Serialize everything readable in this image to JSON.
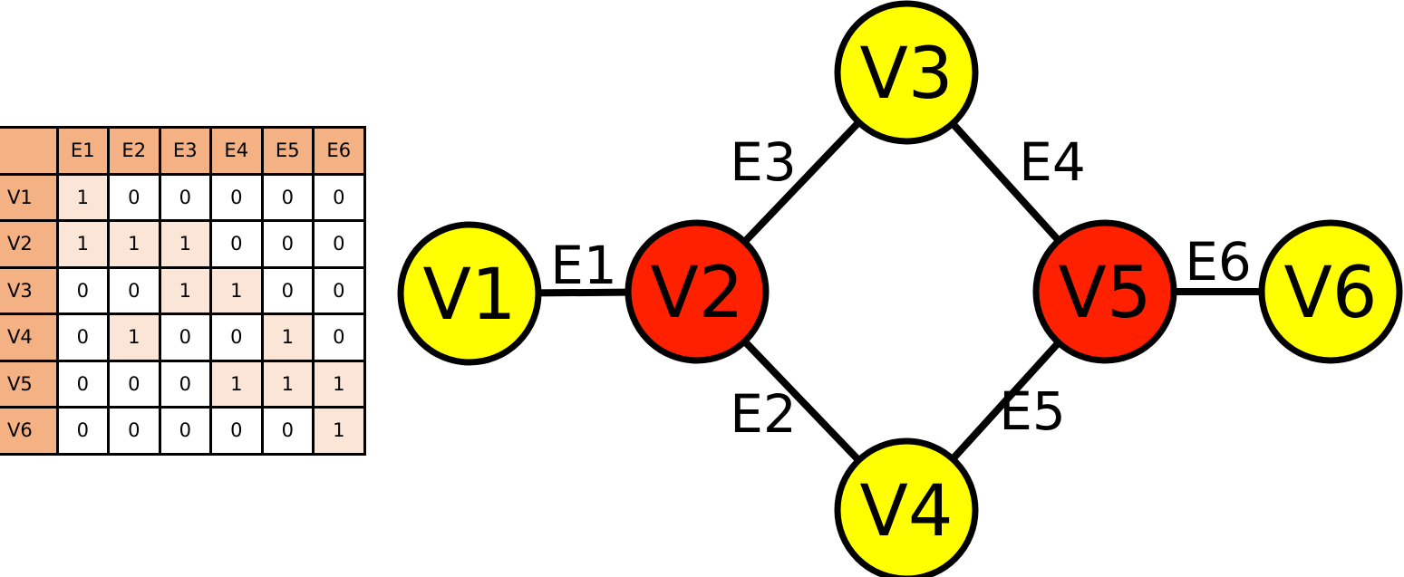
{
  "matrix": {
    "edges": [
      "E1",
      "E2",
      "E3",
      "E4",
      "E5",
      "E6"
    ],
    "rows": [
      {
        "vertex": "V1",
        "values": [
          1,
          0,
          0,
          0,
          0,
          0
        ]
      },
      {
        "vertex": "V2",
        "values": [
          1,
          1,
          1,
          0,
          0,
          0
        ]
      },
      {
        "vertex": "V3",
        "values": [
          0,
          0,
          1,
          1,
          0,
          0
        ]
      },
      {
        "vertex": "V4",
        "values": [
          0,
          1,
          0,
          0,
          1,
          0
        ]
      },
      {
        "vertex": "V5",
        "values": [
          0,
          0,
          0,
          1,
          1,
          1
        ]
      },
      {
        "vertex": "V6",
        "values": [
          0,
          0,
          0,
          0,
          0,
          1
        ]
      }
    ]
  },
  "graph": {
    "colors": {
      "yellow": "#ffff00",
      "red": "#ff2000",
      "stroke": "#000000"
    },
    "nodes": [
      {
        "id": "V1",
        "label": "V1",
        "color": "yellow"
      },
      {
        "id": "V2",
        "label": "V2",
        "color": "red"
      },
      {
        "id": "V3",
        "label": "V3",
        "color": "yellow"
      },
      {
        "id": "V4",
        "label": "V4",
        "color": "yellow"
      },
      {
        "id": "V5",
        "label": "V5",
        "color": "red"
      },
      {
        "id": "V6",
        "label": "V6",
        "color": "yellow"
      }
    ],
    "edges": [
      {
        "id": "E1",
        "label": "E1",
        "from": "V1",
        "to": "V2"
      },
      {
        "id": "E2",
        "label": "E2",
        "from": "V2",
        "to": "V4"
      },
      {
        "id": "E3",
        "label": "E3",
        "from": "V2",
        "to": "V3"
      },
      {
        "id": "E4",
        "label": "E4",
        "from": "V3",
        "to": "V5"
      },
      {
        "id": "E5",
        "label": "E5",
        "from": "V4",
        "to": "V5"
      },
      {
        "id": "E6",
        "label": "E6",
        "from": "V5",
        "to": "V6"
      }
    ]
  }
}
